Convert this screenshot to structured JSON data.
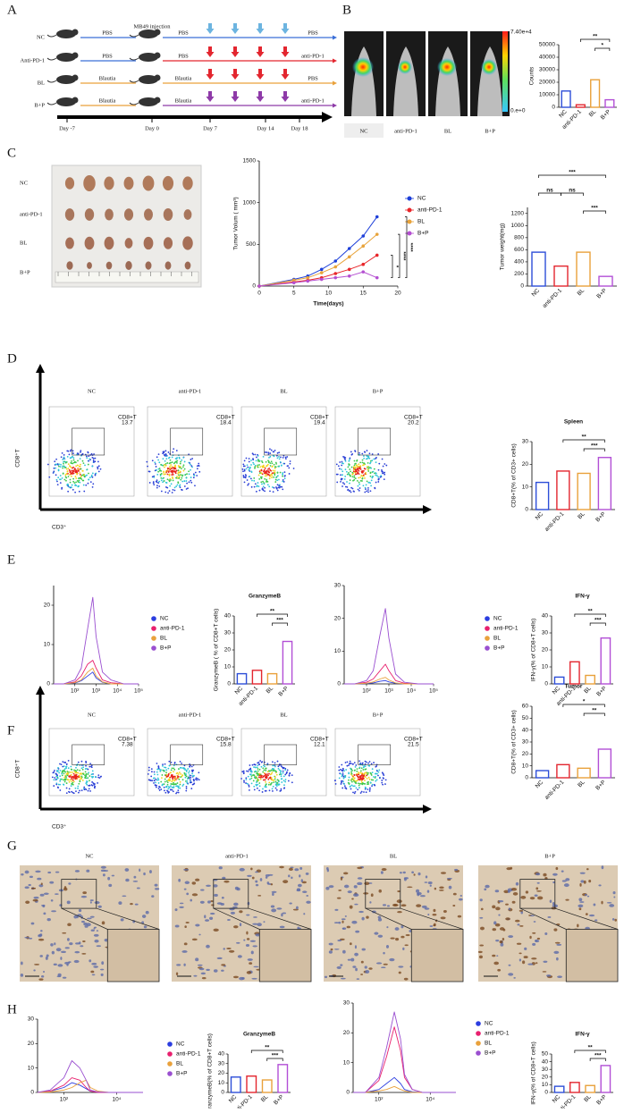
{
  "panel_labels": [
    "A",
    "B",
    "C",
    "D",
    "E",
    "F",
    "G",
    "H"
  ],
  "timeline": {
    "groups": [
      "NC",
      "Anti-PD-1",
      "BL",
      "B+P"
    ],
    "injection": "MB49 injection",
    "rows": [
      [
        "PBS",
        "PBS",
        "PBS"
      ],
      [
        "PBS",
        "PBS",
        "anti-PD-1"
      ],
      [
        "Blautia",
        "Blautia",
        "PBS"
      ],
      [
        "Blautia",
        "Blautia",
        "anti-PD-1"
      ]
    ],
    "days": [
      "Day -7",
      "Day 0",
      "Day 7",
      "Day 14",
      "Day 18"
    ]
  },
  "imaging": {
    "labels": [
      "NC",
      "anti-PD-1",
      "BL",
      "B+P"
    ],
    "scale_max": "7.40e+4",
    "scale_min": "0.e+0"
  },
  "tumor_photo": {
    "rows": [
      "NC",
      "anti-PD-1",
      "BL",
      "B+P"
    ]
  },
  "flow_spleen": {
    "titles": [
      "NC",
      "anti-PD-1",
      "BL",
      "B+P"
    ],
    "gate_name": "CD8+T",
    "gates": [
      "13.7",
      "18.4",
      "19.4",
      "20.2"
    ],
    "y_label": "CD8⁺T",
    "x_label": "CD3⁺"
  },
  "flow_tumor": {
    "titles": [
      "NC",
      "anti-PD-1",
      "BL",
      "B+P"
    ],
    "gate_name": "CD8+T",
    "gates": [
      "7.38",
      "15.8",
      "12.1",
      "21.5"
    ],
    "y_label": "CD8⁺T",
    "x_label": "CD3⁺"
  },
  "ihc": {
    "titles": [
      "NC",
      "anti-PD-1",
      "BL",
      "B+P"
    ]
  },
  "chart_data": [
    {
      "type": "bar",
      "ylabel": "Counts",
      "categories": [
        "NC",
        "anti-PD-1",
        "BL",
        "B+P"
      ],
      "values": [
        13000,
        2000,
        22000,
        6000
      ],
      "colors": [
        "#2d4ed8",
        "#e3262f",
        "#e9a13b",
        "#b24fd6"
      ],
      "ylim": [
        0,
        50000
      ],
      "yticks": [
        0,
        10000,
        20000,
        30000,
        40000,
        50000
      ],
      "annotations": [
        "**",
        "*"
      ]
    },
    {
      "type": "line",
      "xlabel": "Time(days)",
      "ylabel": "Tumor Volum ( mm³)",
      "x": [
        0,
        5,
        7,
        9,
        11,
        13,
        15,
        17
      ],
      "series": [
        {
          "name": "NC",
          "color": "#1d3fd9",
          "values": [
            0,
            80,
            120,
            200,
            300,
            450,
            600,
            830
          ]
        },
        {
          "name": "anti-PD-1",
          "color": "#e8262a",
          "values": [
            0,
            50,
            70,
            100,
            150,
            200,
            260,
            370
          ]
        },
        {
          "name": "BL",
          "color": "#e8a33a",
          "values": [
            0,
            70,
            100,
            160,
            230,
            350,
            480,
            620
          ]
        },
        {
          "name": "B+P",
          "color": "#b44fd1",
          "values": [
            0,
            40,
            60,
            80,
            100,
            120,
            170,
            100
          ]
        }
      ],
      "xlim": [
        0,
        20
      ],
      "xticks": [
        0,
        5,
        10,
        15,
        20
      ],
      "ylim": [
        0,
        1500
      ],
      "yticks": [
        0,
        500,
        1000,
        1500
      ],
      "annotations": [
        "*",
        "****",
        "****"
      ]
    },
    {
      "type": "bar",
      "ylabel": "Tumor weight(mg)",
      "categories": [
        "NC",
        "anti-PD-1",
        "BL",
        "B+P"
      ],
      "values": [
        560,
        330,
        560,
        160
      ],
      "colors": [
        "#2d4ed8",
        "#e3262f",
        "#e9a13b",
        "#b24fd6"
      ],
      "ylim": [
        0,
        1300
      ],
      "yticks": [
        0,
        200,
        400,
        600,
        800,
        1000,
        1200
      ],
      "annotations": [
        "***",
        "ns",
        "ns",
        "***"
      ]
    },
    {
      "type": "bar",
      "title": "Spleen",
      "ylabel": "CD8+T(% of CD3+ cells)",
      "categories": [
        "NC",
        "anti-PD-1",
        "BL",
        "B+P"
      ],
      "values": [
        12,
        17,
        16,
        23
      ],
      "colors": [
        "#2d4ed8",
        "#e3262f",
        "#e9a13b",
        "#b24fd6"
      ],
      "ylim": [
        0,
        30
      ],
      "yticks": [
        0,
        10,
        20,
        30
      ],
      "annotations": [
        "**",
        "***"
      ]
    },
    {
      "type": "density",
      "x": [
        10,
        30,
        100,
        200,
        400,
        700,
        1000,
        2000,
        5000,
        20000,
        100000
      ],
      "xscale": "log",
      "xlim": [
        10,
        100000
      ],
      "xticks": [
        {
          "value": 100,
          "label": "10²"
        },
        {
          "value": 1000,
          "label": "10³"
        },
        {
          "value": 10000,
          "label": "10⁴"
        },
        {
          "value": 100000,
          "label": "10⁵"
        }
      ],
      "ylim": [
        0,
        25
      ],
      "yticks": [
        0,
        10,
        20
      ],
      "series": [
        {
          "name": "NC",
          "color": "#2b3de0",
          "values": [
            0,
            0,
            0.2,
            0.8,
            2,
            3,
            1.5,
            0.4,
            0,
            0,
            0
          ]
        },
        {
          "name": "anti-PD-1",
          "color": "#e8206e",
          "values": [
            0,
            0,
            0.5,
            2,
            5,
            6,
            4,
            1,
            0.3,
            0,
            0
          ]
        },
        {
          "name": "BL",
          "color": "#e9a13b",
          "values": [
            0,
            0,
            0.3,
            1,
            3,
            4,
            2,
            0.5,
            0,
            0,
            0
          ]
        },
        {
          "name": "B+P",
          "color": "#9a4fd0",
          "values": [
            0,
            0,
            1,
            4,
            14,
            22,
            12,
            3,
            1,
            0,
            0
          ]
        }
      ]
    },
    {
      "type": "bar",
      "title": "GranzymeB",
      "ylabel": "GranzymeB ( % of CD8+T cells)",
      "categories": [
        "NC",
        "anti-PD-1",
        "BL",
        "B+P"
      ],
      "values": [
        6,
        8,
        6,
        25
      ],
      "colors": [
        "#2d4ed8",
        "#e3262f",
        "#e9a13b",
        "#b24fd6"
      ],
      "ylim": [
        0,
        40
      ],
      "yticks": [
        0,
        10,
        20,
        30,
        40
      ],
      "annotations": [
        "**",
        "***"
      ]
    },
    {
      "type": "density",
      "x": [
        10,
        30,
        100,
        200,
        400,
        700,
        1000,
        2000,
        5000,
        20000,
        100000
      ],
      "xscale": "log",
      "xlim": [
        10,
        100000
      ],
      "xticks": [
        {
          "value": 100,
          "label": "10²"
        },
        {
          "value": 1000,
          "label": "10³"
        },
        {
          "value": 10000,
          "label": "10⁴"
        },
        {
          "value": 100000,
          "label": "10⁵"
        }
      ],
      "ylim": [
        0,
        30
      ],
      "yticks": [
        0,
        10,
        20,
        30
      ],
      "series": [
        {
          "name": "NC",
          "color": "#2b3de0",
          "values": [
            0,
            0,
            0.1,
            0.3,
            0.8,
            1,
            0.6,
            0.2,
            0,
            0,
            0
          ]
        },
        {
          "name": "anti-PD-1",
          "color": "#e8206e",
          "values": [
            0,
            0,
            0.5,
            1.5,
            4,
            6,
            4,
            1,
            0.2,
            0,
            0
          ]
        },
        {
          "name": "BL",
          "color": "#e9a13b",
          "values": [
            0,
            0,
            0.2,
            0.6,
            1.5,
            2,
            1.2,
            0.3,
            0,
            0,
            0
          ]
        },
        {
          "name": "B+P",
          "color": "#9a4fd0",
          "values": [
            0,
            0,
            1,
            4,
            15,
            23,
            14,
            3,
            0.5,
            0,
            0
          ]
        }
      ]
    },
    {
      "type": "bar",
      "title": "IFN-γ",
      "ylabel": "IFN-γ(% of CD8+T cells)",
      "categories": [
        "NC",
        "anti-PD-1",
        "BL",
        "B+P"
      ],
      "values": [
        4,
        13,
        5,
        27
      ],
      "colors": [
        "#2d4ed8",
        "#e3262f",
        "#e9a13b",
        "#b24fd6"
      ],
      "ylim": [
        0,
        40
      ],
      "yticks": [
        0,
        10,
        20,
        30,
        40
      ],
      "annotations": [
        "**",
        "***"
      ]
    },
    {
      "type": "bar",
      "title": "Tumor",
      "ylabel": "CD8+T(% of CD3+ cells)",
      "categories": [
        "NC",
        "anti-PD-1",
        "BL",
        "B+P"
      ],
      "values": [
        6,
        11,
        8,
        24
      ],
      "colors": [
        "#2d4ed8",
        "#e3262f",
        "#e9a13b",
        "#b24fd6"
      ],
      "ylim": [
        0,
        60
      ],
      "yticks": [
        0,
        10,
        20,
        30,
        40,
        50,
        60
      ],
      "annotations": [
        "*",
        "**"
      ]
    },
    {
      "type": "density",
      "x": [
        10,
        30,
        100,
        200,
        400,
        700,
        1000,
        2000,
        5000,
        20000,
        100000
      ],
      "xscale": "log",
      "xlim": [
        10,
        100000
      ],
      "xticks": [
        {
          "value": 100,
          "label": "10²"
        },
        {
          "value": 10000,
          "label": "10⁴"
        }
      ],
      "ylim": [
        0,
        30
      ],
      "yticks": [
        0,
        10,
        20,
        30
      ],
      "series": [
        {
          "name": "NC",
          "color": "#2b3de0",
          "values": [
            0,
            0.5,
            2,
            4,
            3,
            1.5,
            0.5,
            0,
            0,
            0,
            0
          ]
        },
        {
          "name": "anti-PD-1",
          "color": "#e8206e",
          "values": [
            0,
            0.5,
            3,
            6,
            5,
            2,
            0.5,
            0,
            0,
            0,
            0
          ]
        },
        {
          "name": "BL",
          "color": "#e9a13b",
          "values": [
            0,
            0.2,
            1,
            2,
            4,
            5,
            2,
            0.5,
            0,
            0,
            0
          ]
        },
        {
          "name": "B+P",
          "color": "#9a4fd0",
          "values": [
            0,
            1,
            6,
            13,
            10,
            5,
            1,
            0.2,
            0,
            0,
            0
          ]
        }
      ]
    },
    {
      "type": "bar",
      "title": "GranzymeB",
      "ylabel": "GranzymeB(% of CD8+T cells)",
      "categories": [
        "NC",
        "anti-PD-1",
        "BL",
        "B+P"
      ],
      "values": [
        16,
        17,
        13,
        29
      ],
      "colors": [
        "#2d4ed8",
        "#e3262f",
        "#e9a13b",
        "#b24fd6"
      ],
      "ylim": [
        0,
        40
      ],
      "yticks": [
        0,
        10,
        20,
        30,
        40
      ],
      "annotations": [
        "**",
        "***"
      ]
    },
    {
      "type": "density",
      "x": [
        10,
        30,
        100,
        200,
        400,
        700,
        1000,
        2000,
        5000,
        20000,
        100000
      ],
      "xscale": "log",
      "xlim": [
        10,
        100000
      ],
      "xticks": [
        {
          "value": 100,
          "label": "10²"
        },
        {
          "value": 10000,
          "label": "10⁴"
        }
      ],
      "ylim": [
        0,
        30
      ],
      "yticks": [
        0,
        10,
        20,
        30
      ],
      "series": [
        {
          "name": "NC",
          "color": "#2b3de0",
          "values": [
            0,
            0,
            1,
            3,
            5,
            3,
            1,
            0.2,
            0,
            0,
            0
          ]
        },
        {
          "name": "anti-PD-1",
          "color": "#e8206e",
          "values": [
            0,
            0,
            4,
            12,
            22,
            14,
            5,
            1,
            0,
            0,
            0
          ]
        },
        {
          "name": "BL",
          "color": "#e9a13b",
          "values": [
            0,
            0,
            0.5,
            1,
            2,
            1,
            0.5,
            0,
            0,
            0,
            0
          ]
        },
        {
          "name": "B+P",
          "color": "#9a4fd0",
          "values": [
            0,
            0,
            5,
            15,
            27,
            18,
            6,
            1,
            0,
            0,
            0
          ]
        }
      ]
    },
    {
      "type": "bar",
      "title": "IFN-γ",
      "ylabel": "IFN-γ(% of CD8+T cells)",
      "categories": [
        "NC",
        "anti-PD-1",
        "BL",
        "B+P"
      ],
      "values": [
        8,
        13,
        9,
        35
      ],
      "colors": [
        "#2d4ed8",
        "#e3262f",
        "#e9a13b",
        "#b24fd6"
      ],
      "ylim": [
        0,
        50
      ],
      "yticks": [
        0,
        10,
        20,
        30,
        40,
        50
      ],
      "annotations": [
        "**",
        "***"
      ]
    }
  ]
}
